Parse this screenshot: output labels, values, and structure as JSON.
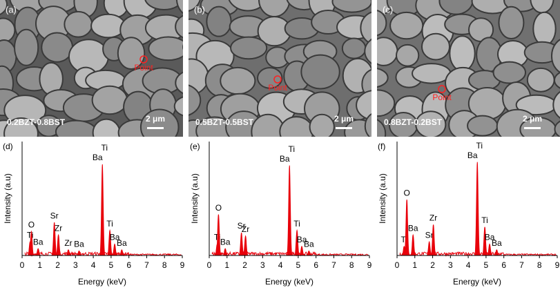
{
  "images": [
    {
      "label": "(a)",
      "composition": "0.2BZT-0.8BST",
      "point": "Point",
      "scale_bar": "2 μm"
    },
    {
      "label": "(b)",
      "composition": "0.5BZT-0.5BST",
      "point": "Point",
      "scale_bar": "2 μm"
    },
    {
      "label": "(c)",
      "composition": "0.8BZT-0.2BST",
      "point": "Point",
      "scale_bar": "2 μm"
    }
  ],
  "chart_data": [
    {
      "type": "spectrum",
      "label": "(d)",
      "x_label": "Energy (keV)",
      "y_label": "Intensity (a.u)",
      "color": "#e8000b",
      "xlim": [
        0,
        9
      ],
      "xticks": [
        0,
        1,
        2,
        3,
        4,
        5,
        6,
        7,
        8,
        9
      ],
      "ylim": [
        0,
        100
      ],
      "peaks": [
        {
          "energy": 0.45,
          "height": 12,
          "labels": [
            "Ti"
          ]
        },
        {
          "energy": 0.52,
          "height": 21,
          "labels": [
            "O"
          ]
        },
        {
          "energy": 0.9,
          "height": 6,
          "labels": [
            "Ba"
          ]
        },
        {
          "energy": 1.81,
          "height": 29,
          "labels": [
            "Sr"
          ]
        },
        {
          "energy": 2.04,
          "height": 18,
          "labels": [
            "Zr"
          ]
        },
        {
          "energy": 2.6,
          "height": 5,
          "labels": [
            "Zr"
          ]
        },
        {
          "energy": 3.2,
          "height": 4,
          "labels": [
            "Ba"
          ]
        },
        {
          "energy": 4.51,
          "height": 80,
          "labels": [
            "Ti",
            "Ba"
          ]
        },
        {
          "energy": 4.93,
          "height": 22,
          "labels": [
            "Ti"
          ]
        },
        {
          "energy": 5.2,
          "height": 10,
          "labels": [
            "Ba"
          ]
        },
        {
          "energy": 5.6,
          "height": 5,
          "labels": [
            "Ba"
          ]
        }
      ]
    },
    {
      "type": "spectrum",
      "label": "(e)",
      "x_label": "Energy (keV)",
      "y_label": "Intensity (a.u)",
      "color": "#e8000b",
      "xlim": [
        0,
        9
      ],
      "xticks": [
        0,
        1,
        2,
        3,
        4,
        5,
        6,
        7,
        8,
        9
      ],
      "ylim": [
        0,
        100
      ],
      "peaks": [
        {
          "energy": 0.45,
          "height": 10,
          "labels": [
            "Ti"
          ]
        },
        {
          "energy": 0.52,
          "height": 36,
          "labels": [
            "O"
          ]
        },
        {
          "energy": 0.9,
          "height": 6,
          "labels": [
            "Ba"
          ]
        },
        {
          "energy": 1.81,
          "height": 20,
          "labels": [
            "Sr"
          ]
        },
        {
          "energy": 2.04,
          "height": 17,
          "labels": [
            "Zr"
          ]
        },
        {
          "energy": 4.51,
          "height": 79,
          "labels": [
            "Ti",
            "Ba"
          ]
        },
        {
          "energy": 4.93,
          "height": 22,
          "labels": [
            "Ti"
          ]
        },
        {
          "energy": 5.2,
          "height": 8,
          "labels": [
            "Ba"
          ]
        },
        {
          "energy": 5.6,
          "height": 4,
          "labels": [
            "Ba"
          ]
        }
      ]
    },
    {
      "type": "spectrum",
      "label": "(f)",
      "x_label": "Energy (keV)",
      "y_label": "Intensity (a.u)",
      "color": "#e8000b",
      "xlim": [
        0,
        9
      ],
      "xticks": [
        0,
        1,
        2,
        3,
        4,
        5,
        6,
        7,
        8,
        9
      ],
      "ylim": [
        0,
        100
      ],
      "peaks": [
        {
          "energy": 0.4,
          "height": 8,
          "labels": [
            "Ti"
          ]
        },
        {
          "energy": 0.55,
          "height": 49,
          "labels": [
            "O"
          ]
        },
        {
          "energy": 0.9,
          "height": 18,
          "labels": [
            "Ba"
          ]
        },
        {
          "energy": 1.81,
          "height": 12,
          "labels": [
            "Sr"
          ]
        },
        {
          "energy": 2.04,
          "height": 27,
          "labels": [
            "Zr"
          ]
        },
        {
          "energy": 4.51,
          "height": 82,
          "labels": [
            "Ti",
            "Ba"
          ]
        },
        {
          "energy": 4.93,
          "height": 25,
          "labels": [
            "Ti"
          ]
        },
        {
          "energy": 5.2,
          "height": 10,
          "labels": [
            "Ba"
          ]
        },
        {
          "energy": 5.6,
          "height": 5,
          "labels": [
            "Ba"
          ]
        }
      ]
    }
  ]
}
